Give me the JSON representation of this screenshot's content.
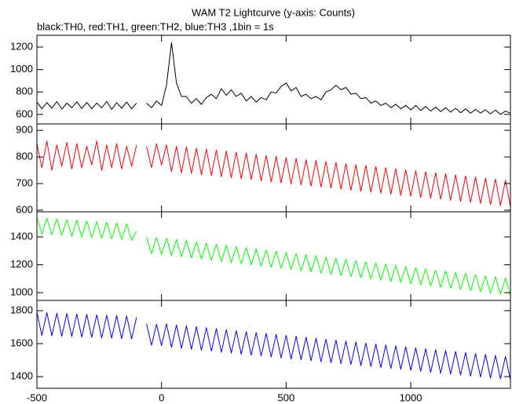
{
  "chart_data": {
    "type": "line",
    "title": "WAM T2 Lightcurve (y-axis: Counts)",
    "subtitle": "black:TH0, red:TH1, green:TH2, blue:TH3 ,1bin = 1s",
    "xlim": [
      -500,
      1400
    ],
    "xticks": [
      -500,
      0,
      500,
      1000
    ],
    "x": [
      -500,
      -480,
      -460,
      -440,
      -420,
      -400,
      -380,
      -360,
      -340,
      -320,
      -300,
      -280,
      -260,
      -240,
      -220,
      -200,
      -180,
      -160,
      -140,
      -120,
      -100,
      -80,
      -60,
      -40,
      -20,
      0,
      20,
      40,
      60,
      80,
      100,
      120,
      140,
      160,
      180,
      200,
      220,
      240,
      260,
      280,
      300,
      320,
      340,
      360,
      380,
      400,
      420,
      440,
      460,
      480,
      500,
      520,
      540,
      560,
      580,
      600,
      620,
      640,
      660,
      680,
      700,
      720,
      740,
      760,
      780,
      800,
      820,
      840,
      860,
      880,
      900,
      920,
      940,
      960,
      980,
      1000,
      1020,
      1040,
      1060,
      1080,
      1100,
      1120,
      1140,
      1160,
      1180,
      1200,
      1220,
      1240,
      1260,
      1280,
      1300,
      1320,
      1340,
      1360,
      1380,
      1400
    ],
    "panels": [
      {
        "color": "#000000",
        "ylim": [
          515,
          1305
        ],
        "yticks": [
          600,
          800,
          1000,
          1200
        ],
        "values": [
          710,
          650,
          705,
          655,
          715,
          648,
          700,
          660,
          712,
          652,
          708,
          650,
          702,
          658,
          715,
          645,
          705,
          655,
          710,
          650,
          700,
          null,
          700,
          660,
          720,
          680,
          860,
          1240,
          880,
          760,
          760,
          700,
          740,
          690,
          750,
          780,
          740,
          830,
          770,
          820,
          760,
          790,
          720,
          760,
          710,
          750,
          730,
          800,
          790,
          850,
          880,
          810,
          840,
          760,
          780,
          740,
          760,
          730,
          800,
          820,
          860,
          820,
          840,
          780,
          790,
          740,
          750,
          700,
          720,
          680,
          700,
          660,
          690,
          650,
          680,
          640,
          680,
          635,
          670,
          630,
          665,
          625,
          660,
          620,
          655,
          615,
          650,
          610,
          645,
          612,
          640,
          605,
          638,
          600,
          630,
          610
        ]
      },
      {
        "color": "#ff0000",
        "ylim": [
          594,
          924
        ],
        "yticks": [
          600,
          700,
          800,
          900
        ],
        "values": [
          850,
          760,
          860,
          750,
          845,
          765,
          855,
          755,
          850,
          760,
          840,
          770,
          860,
          750,
          845,
          760,
          850,
          755,
          840,
          765,
          845,
          null,
          840,
          760,
          850,
          770,
          845,
          745,
          840,
          740,
          838,
          738,
          833,
          733,
          830,
          730,
          826,
          726,
          822,
          722,
          818,
          718,
          815,
          715,
          810,
          710,
          806,
          706,
          803,
          703,
          798,
          698,
          795,
          695,
          790,
          690,
          787,
          687,
          783,
          683,
          779,
          679,
          775,
          675,
          771,
          671,
          768,
          668,
          764,
          664,
          760,
          660,
          756,
          656,
          752,
          652,
          748,
          648,
          745,
          645,
          741,
          641,
          737,
          637,
          733,
          633,
          729,
          629,
          725,
          625,
          721,
          621,
          717,
          617,
          713,
          613
        ]
      },
      {
        "color": "#00ff00",
        "ylim": [
          944,
          1580
        ],
        "yticks": [
          1000,
          1200,
          1400
        ],
        "values": [
          1540,
          1420,
          1535,
          1415,
          1530,
          1410,
          1525,
          1405,
          1520,
          1400,
          1515,
          1395,
          1510,
          1390,
          1505,
          1385,
          1500,
          1380,
          1495,
          1375,
          1440,
          null,
          1400,
          1280,
          1395,
          1275,
          1390,
          1266,
          1382,
          1258,
          1373,
          1249,
          1365,
          1241,
          1356,
          1232,
          1348,
          1224,
          1340,
          1216,
          1331,
          1207,
          1323,
          1199,
          1314,
          1190,
          1306,
          1182,
          1298,
          1174,
          1289,
          1165,
          1281,
          1157,
          1272,
          1148,
          1264,
          1140,
          1256,
          1132,
          1247,
          1123,
          1239,
          1115,
          1230,
          1106,
          1222,
          1098,
          1214,
          1090,
          1205,
          1081,
          1197,
          1073,
          1188,
          1064,
          1180,
          1056,
          1172,
          1048,
          1163,
          1039,
          1155,
          1031,
          1146,
          1022,
          1138,
          1014,
          1130,
          1006,
          1121,
          997,
          1113,
          989,
          1104,
          980
        ]
      },
      {
        "color": "#0000ff",
        "ylim": [
          1329,
          1862
        ],
        "yticks": [
          1400,
          1600,
          1800
        ],
        "values": [
          1790,
          1650,
          1788,
          1648,
          1785,
          1645,
          1783,
          1643,
          1780,
          1640,
          1778,
          1638,
          1775,
          1635,
          1773,
          1633,
          1770,
          1630,
          1768,
          1628,
          1760,
          null,
          1720,
          1590,
          1718,
          1588,
          1720,
          1577,
          1714,
          1571,
          1708,
          1565,
          1703,
          1560,
          1697,
          1554,
          1691,
          1548,
          1685,
          1542,
          1679,
          1536,
          1674,
          1531,
          1668,
          1525,
          1662,
          1519,
          1656,
          1513,
          1650,
          1507,
          1645,
          1502,
          1639,
          1496,
          1633,
          1490,
          1627,
          1484,
          1621,
          1478,
          1616,
          1473,
          1610,
          1467,
          1604,
          1461,
          1598,
          1455,
          1592,
          1449,
          1587,
          1444,
          1581,
          1438,
          1575,
          1432,
          1569,
          1426,
          1563,
          1420,
          1558,
          1415,
          1552,
          1409,
          1546,
          1403,
          1540,
          1397,
          1534,
          1391,
          1529,
          1386,
          1523,
          1380
        ]
      }
    ]
  }
}
